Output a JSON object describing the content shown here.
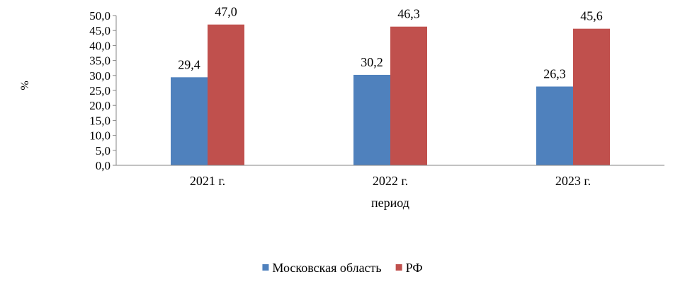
{
  "chart_data": {
    "type": "bar",
    "title": "",
    "xlabel": "период",
    "ylabel": "%",
    "ylim": [
      0,
      50
    ],
    "yticks": [
      0,
      5,
      10,
      15,
      20,
      25,
      30,
      35,
      40,
      45,
      50
    ],
    "ytick_labels": [
      "0,0",
      "5,0",
      "10,0",
      "15,0",
      "20,0",
      "25,0",
      "30,0",
      "35,0",
      "40,0",
      "45,0",
      "50,0"
    ],
    "categories": [
      "2021 г.",
      "2022 г.",
      "2023 г."
    ],
    "series": [
      {
        "name": "Московская область",
        "color": "#4f81bd",
        "values": [
          29.4,
          30.2,
          26.3
        ],
        "labels": [
          "29,4",
          "30,2",
          "26,3"
        ]
      },
      {
        "name": "РФ",
        "color": "#c0504d",
        "values": [
          47.0,
          46.3,
          45.6
        ],
        "labels": [
          "47,0",
          "46,3",
          "45,6"
        ]
      }
    ],
    "grid": false,
    "legend_position": "bottom"
  }
}
